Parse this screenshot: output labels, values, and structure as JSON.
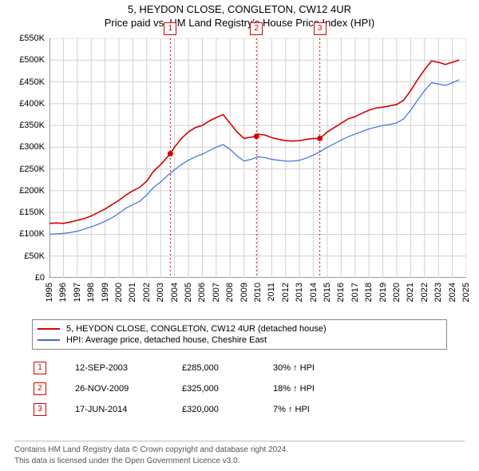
{
  "title": "5, HEYDON CLOSE, CONGLETON, CW12 4UR",
  "subtitle": "Price paid vs. HM Land Registry's House Price Index (HPI)",
  "chart": {
    "type": "line",
    "background_color": "#ffffff",
    "grid_color": "#d0d0d0",
    "grid_minor_color": "#e8e8e8",
    "axis_color": "#333333",
    "label_fontsize": 11,
    "x": {
      "min": 1995,
      "max": 2025,
      "ticks": [
        1995,
        1996,
        1997,
        1998,
        1999,
        2000,
        2001,
        2002,
        2003,
        2004,
        2005,
        2006,
        2007,
        2008,
        2009,
        2010,
        2011,
        2012,
        2013,
        2014,
        2015,
        2016,
        2017,
        2018,
        2019,
        2020,
        2021,
        2022,
        2023,
        2024,
        2025
      ]
    },
    "y": {
      "min": 0,
      "max": 550000,
      "tick_step": 50000,
      "labels": [
        "£0",
        "£50K",
        "£100K",
        "£150K",
        "£200K",
        "£250K",
        "£300K",
        "£350K",
        "£400K",
        "£450K",
        "£500K",
        "£550K"
      ]
    },
    "series": [
      {
        "name": "5, HEYDON CLOSE, CONGLETON, CW12 4UR (detached house)",
        "color": "#d60000",
        "line_width": 1.6,
        "points": [
          [
            1995.0,
            125000
          ],
          [
            1995.5,
            126000
          ],
          [
            1996.0,
            125000
          ],
          [
            1996.5,
            128000
          ],
          [
            1997.0,
            132000
          ],
          [
            1997.5,
            136000
          ],
          [
            1998.0,
            142000
          ],
          [
            1998.5,
            150000
          ],
          [
            1999.0,
            158000
          ],
          [
            1999.5,
            168000
          ],
          [
            2000.0,
            178000
          ],
          [
            2000.5,
            190000
          ],
          [
            2001.0,
            200000
          ],
          [
            2001.5,
            208000
          ],
          [
            2002.0,
            222000
          ],
          [
            2002.5,
            245000
          ],
          [
            2003.0,
            260000
          ],
          [
            2003.5,
            278000
          ],
          [
            2003.7,
            285000
          ],
          [
            2004.0,
            300000
          ],
          [
            2004.5,
            320000
          ],
          [
            2005.0,
            335000
          ],
          [
            2005.5,
            345000
          ],
          [
            2006.0,
            350000
          ],
          [
            2006.5,
            360000
          ],
          [
            2007.0,
            368000
          ],
          [
            2007.5,
            375000
          ],
          [
            2008.0,
            355000
          ],
          [
            2008.5,
            335000
          ],
          [
            2009.0,
            320000
          ],
          [
            2009.5,
            323000
          ],
          [
            2009.9,
            325000
          ],
          [
            2010.0,
            330000
          ],
          [
            2010.5,
            328000
          ],
          [
            2011.0,
            322000
          ],
          [
            2011.5,
            318000
          ],
          [
            2012.0,
            315000
          ],
          [
            2012.5,
            314000
          ],
          [
            2013.0,
            315000
          ],
          [
            2013.5,
            318000
          ],
          [
            2014.0,
            320000
          ],
          [
            2014.46,
            320000
          ],
          [
            2015.0,
            335000
          ],
          [
            2015.5,
            345000
          ],
          [
            2016.0,
            355000
          ],
          [
            2016.5,
            365000
          ],
          [
            2017.0,
            370000
          ],
          [
            2017.5,
            378000
          ],
          [
            2018.0,
            385000
          ],
          [
            2018.5,
            390000
          ],
          [
            2019.0,
            392000
          ],
          [
            2019.5,
            395000
          ],
          [
            2020.0,
            398000
          ],
          [
            2020.5,
            408000
          ],
          [
            2021.0,
            430000
          ],
          [
            2021.5,
            455000
          ],
          [
            2022.0,
            478000
          ],
          [
            2022.5,
            498000
          ],
          [
            2023.0,
            495000
          ],
          [
            2023.5,
            490000
          ],
          [
            2024.0,
            495000
          ],
          [
            2024.5,
            500000
          ]
        ]
      },
      {
        "name": "HPI: Average price, detached house, Cheshire East",
        "color": "#3a6fd8",
        "line_width": 1.2,
        "points": [
          [
            1995.0,
            100000
          ],
          [
            1995.5,
            101000
          ],
          [
            1996.0,
            102000
          ],
          [
            1996.5,
            104000
          ],
          [
            1997.0,
            107000
          ],
          [
            1997.5,
            112000
          ],
          [
            1998.0,
            117000
          ],
          [
            1998.5,
            123000
          ],
          [
            1999.0,
            130000
          ],
          [
            1999.5,
            138000
          ],
          [
            2000.0,
            148000
          ],
          [
            2000.5,
            160000
          ],
          [
            2001.0,
            168000
          ],
          [
            2001.5,
            176000
          ],
          [
            2002.0,
            190000
          ],
          [
            2002.5,
            208000
          ],
          [
            2003.0,
            220000
          ],
          [
            2003.5,
            235000
          ],
          [
            2004.0,
            248000
          ],
          [
            2004.5,
            260000
          ],
          [
            2005.0,
            270000
          ],
          [
            2005.5,
            278000
          ],
          [
            2006.0,
            284000
          ],
          [
            2006.5,
            292000
          ],
          [
            2007.0,
            300000
          ],
          [
            2007.5,
            306000
          ],
          [
            2008.0,
            295000
          ],
          [
            2008.5,
            280000
          ],
          [
            2009.0,
            268000
          ],
          [
            2009.5,
            272000
          ],
          [
            2010.0,
            278000
          ],
          [
            2010.5,
            276000
          ],
          [
            2011.0,
            272000
          ],
          [
            2011.5,
            270000
          ],
          [
            2012.0,
            268000
          ],
          [
            2012.5,
            268000
          ],
          [
            2013.0,
            270000
          ],
          [
            2013.5,
            275000
          ],
          [
            2014.0,
            282000
          ],
          [
            2014.5,
            290000
          ],
          [
            2015.0,
            300000
          ],
          [
            2015.5,
            308000
          ],
          [
            2016.0,
            316000
          ],
          [
            2016.5,
            324000
          ],
          [
            2017.0,
            330000
          ],
          [
            2017.5,
            336000
          ],
          [
            2018.0,
            342000
          ],
          [
            2018.5,
            346000
          ],
          [
            2019.0,
            350000
          ],
          [
            2019.5,
            352000
          ],
          [
            2020.0,
            356000
          ],
          [
            2020.5,
            365000
          ],
          [
            2021.0,
            385000
          ],
          [
            2021.5,
            408000
          ],
          [
            2022.0,
            430000
          ],
          [
            2022.5,
            448000
          ],
          [
            2023.0,
            445000
          ],
          [
            2023.5,
            442000
          ],
          [
            2024.0,
            448000
          ],
          [
            2024.5,
            455000
          ]
        ]
      }
    ],
    "markers": [
      {
        "n": "1",
        "x": 2003.7,
        "y": 285000,
        "color": "#d60000"
      },
      {
        "n": "2",
        "x": 2009.9,
        "y": 325000,
        "color": "#d60000"
      },
      {
        "n": "3",
        "x": 2014.46,
        "y": 320000,
        "color": "#d60000"
      }
    ],
    "marker_line_color": "#d60000",
    "marker_dot_radius": 3.5,
    "marker_box_top_offset": -20
  },
  "legend": {
    "border_color": "#888888",
    "items": [
      {
        "color": "#d60000",
        "label": "5, HEYDON CLOSE, CONGLETON, CW12 4UR (detached house)"
      },
      {
        "color": "#3a6fd8",
        "label": "HPI: Average price, detached house, Cheshire East"
      }
    ]
  },
  "sales": [
    {
      "n": "1",
      "date": "12-SEP-2003",
      "price": "£285,000",
      "diff": "30% ↑ HPI",
      "color": "#d60000"
    },
    {
      "n": "2",
      "date": "26-NOV-2009",
      "price": "£325,000",
      "diff": "18% ↑ HPI",
      "color": "#d60000"
    },
    {
      "n": "3",
      "date": "17-JUN-2014",
      "price": "£320,000",
      "diff": "7% ↑ HPI",
      "color": "#d60000"
    }
  ],
  "footer": {
    "line1": "Contains HM Land Registry data © Crown copyright and database right 2024.",
    "line2": "This data is licensed under the Open Government Licence v3.0.",
    "text_color": "#555555",
    "divider_color": "#bbbbbb"
  }
}
